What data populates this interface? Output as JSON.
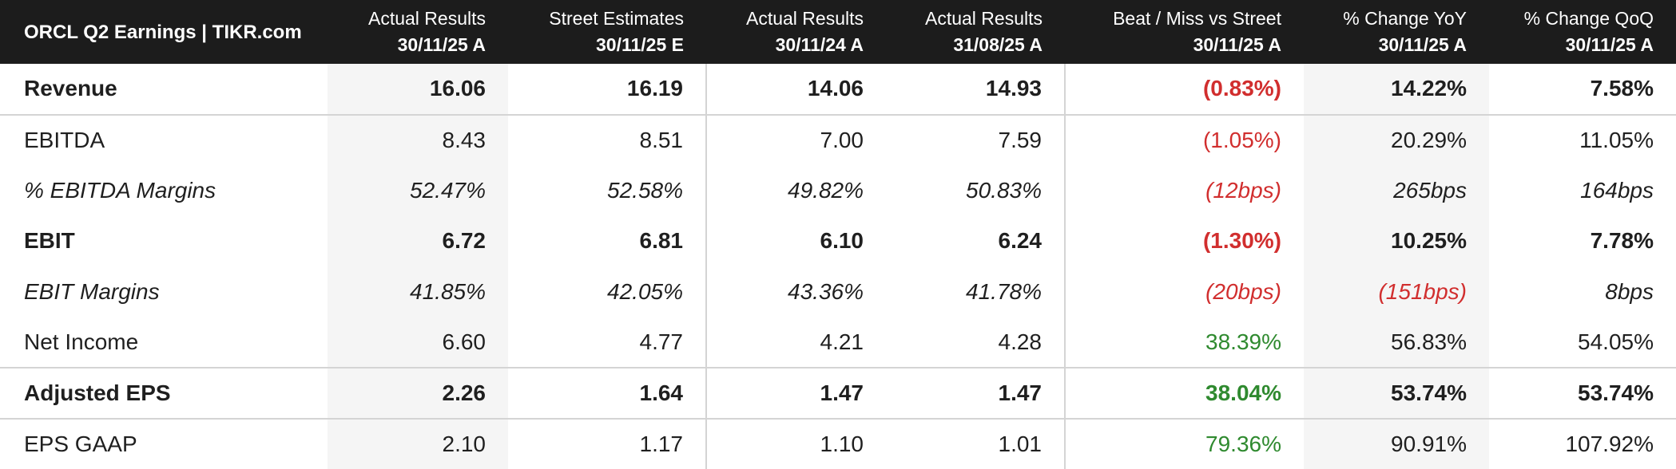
{
  "title": "ORCL Q2 Earnings | TIKR.com",
  "columns": [
    {
      "label": "Actual Results",
      "date": "30/11/25 A"
    },
    {
      "label": "Street Estimates",
      "date": "30/11/25 E"
    },
    {
      "label": "Actual Results",
      "date": "30/11/24 A"
    },
    {
      "label": "Actual Results",
      "date": "31/08/25 A"
    },
    {
      "label": "Beat / Miss vs Street",
      "date": "30/11/25 A"
    },
    {
      "label": "% Change YoY",
      "date": "30/11/25 A"
    },
    {
      "label": "% Change QoQ",
      "date": "30/11/25 A"
    }
  ],
  "colors": {
    "header_bg": "#1c1c1c",
    "negative": "#d12e2e",
    "positive": "#2f8a2f",
    "shade": "#f5f5f5"
  },
  "rows": [
    {
      "label": "Revenue",
      "values": [
        "16.06",
        "16.19",
        "14.06",
        "14.93",
        "(0.83%)",
        "14.22%",
        "7.58%"
      ]
    },
    {
      "label": "EBITDA",
      "values": [
        "8.43",
        "8.51",
        "7.00",
        "7.59",
        "(1.05%)",
        "20.29%",
        "11.05%"
      ]
    },
    {
      "label": "% EBITDA Margins",
      "values": [
        "52.47%",
        "52.58%",
        "49.82%",
        "50.83%",
        "(12bps)",
        "265bps",
        "164bps"
      ]
    },
    {
      "label": "EBIT",
      "values": [
        "6.72",
        "6.81",
        "6.10",
        "6.24",
        "(1.30%)",
        "10.25%",
        "7.78%"
      ]
    },
    {
      "label": "EBIT Margins",
      "values": [
        "41.85%",
        "42.05%",
        "43.36%",
        "41.78%",
        "(20bps)",
        "(151bps)",
        "8bps"
      ]
    },
    {
      "label": "Net Income",
      "values": [
        "6.60",
        "4.77",
        "4.21",
        "4.28",
        "38.39%",
        "56.83%",
        "54.05%"
      ]
    },
    {
      "label": "Adjusted EPS",
      "values": [
        "2.26",
        "1.64",
        "1.47",
        "1.47",
        "38.04%",
        "53.74%",
        "53.74%"
      ]
    },
    {
      "label": "EPS GAAP",
      "values": [
        "2.10",
        "1.17",
        "1.10",
        "1.01",
        "79.36%",
        "90.91%",
        "107.92%"
      ]
    }
  ]
}
